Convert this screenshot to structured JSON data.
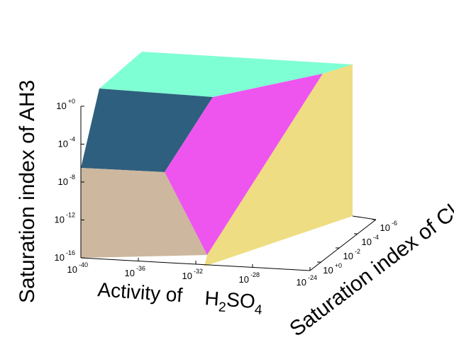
{
  "chart_data": {
    "type": "3d-surface",
    "xlabel_prefix": "Activity of",
    "xlabel_formula": [
      {
        "text": "H",
        "sub": false
      },
      {
        "text": "2",
        "sub": true
      },
      {
        "text": "SO",
        "sub": false
      },
      {
        "text": "4",
        "sub": true
      }
    ],
    "ylabel": "Saturation index of Cl",
    "zlabel": "Saturation index of AH3",
    "x_scale": "log",
    "y_scale": "log",
    "z_scale": "log",
    "x_ticks": [
      {
        "base": "10",
        "exp": "-40"
      },
      {
        "base": "10",
        "exp": "-36"
      },
      {
        "base": "10",
        "exp": "-32"
      },
      {
        "base": "10",
        "exp": "-28"
      },
      {
        "base": "10",
        "exp": "-24"
      }
    ],
    "y_ticks": [
      {
        "base": "10",
        "exp": "+0"
      },
      {
        "base": "10",
        "exp": "-2"
      },
      {
        "base": "10",
        "exp": "-4"
      },
      {
        "base": "10",
        "exp": "-6"
      }
    ],
    "z_ticks": [
      {
        "base": "10",
        "exp": "-16"
      },
      {
        "base": "10",
        "exp": "-12"
      },
      {
        "base": "10",
        "exp": "-8"
      },
      {
        "base": "10",
        "exp": "-4"
      },
      {
        "base": "10",
        "exp": "+0"
      }
    ],
    "regions": [
      {
        "color": "#7fffd4"
      },
      {
        "color": "#2f5f7e"
      },
      {
        "color": "#ee55ee"
      },
      {
        "color": "#cdb79e"
      },
      {
        "color": "#eedd82"
      }
    ]
  }
}
